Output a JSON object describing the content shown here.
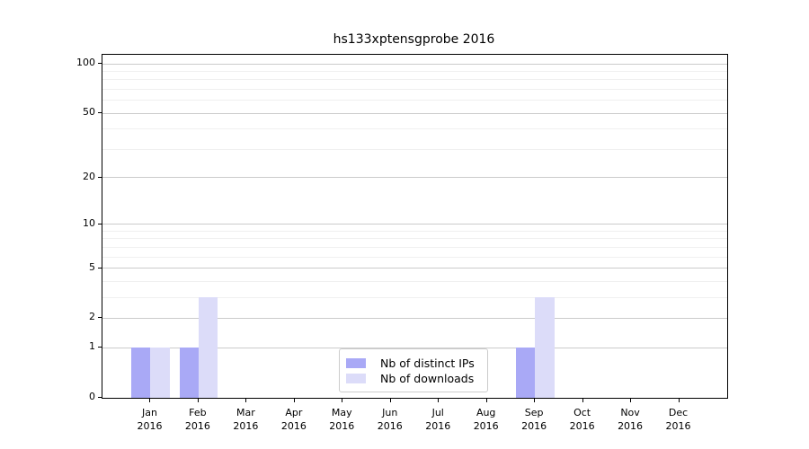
{
  "title": "hs133xptensgprobe 2016",
  "colors": {
    "bar_distinct_ips": "#a9a9f6",
    "bar_downloads": "#dcdcf9",
    "grid_major": "#cbcbcb",
    "grid_minor": "#f0f0f0",
    "axis": "#000000",
    "legend_border": "#cccccc"
  },
  "chart_data": {
    "type": "bar",
    "title": "hs133xptensgprobe 2016",
    "categories": [
      "Jan",
      "Feb",
      "Mar",
      "Apr",
      "May",
      "Jun",
      "Jul",
      "Aug",
      "Sep",
      "Oct",
      "Nov",
      "Dec"
    ],
    "year_label": "2016",
    "series": [
      {
        "name": "Nb of distinct IPs",
        "color": "#a9a9f6",
        "values": [
          1,
          1,
          0,
          0,
          0,
          0,
          0,
          0,
          1,
          0,
          0,
          0
        ]
      },
      {
        "name": "Nb of downloads",
        "color": "#dcdcf9",
        "values": [
          1,
          3,
          0,
          0,
          0,
          0,
          0,
          0,
          3,
          0,
          0,
          0
        ]
      }
    ],
    "yscale": "log1p",
    "ylim": [
      0,
      113.5
    ],
    "y_major_ticks": [
      0,
      1,
      2,
      5,
      10,
      20,
      50,
      100
    ],
    "y_minor_ticks": [
      3,
      4,
      6,
      7,
      8,
      9,
      30,
      40,
      60,
      70,
      80,
      90
    ],
    "grid": "horizontal",
    "legend_position": "lower center"
  }
}
